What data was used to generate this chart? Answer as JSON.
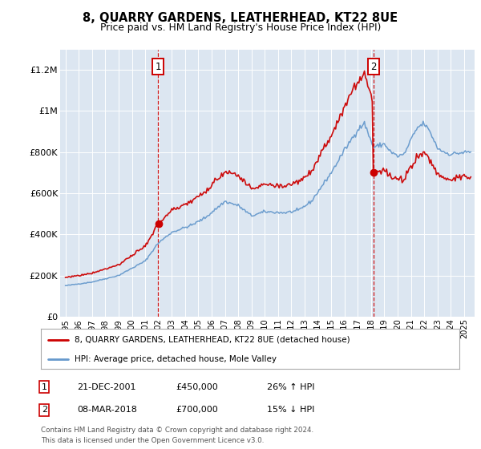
{
  "title": "8, QUARRY GARDENS, LEATHERHEAD, KT22 8UE",
  "subtitle": "Price paid vs. HM Land Registry's House Price Index (HPI)",
  "legend_line1": "8, QUARRY GARDENS, LEATHERHEAD, KT22 8UE (detached house)",
  "legend_line2": "HPI: Average price, detached house, Mole Valley",
  "annotation1_label": "1",
  "annotation1_date": "21-DEC-2001",
  "annotation1_price": "£450,000",
  "annotation1_hpi": "26% ↑ HPI",
  "annotation2_label": "2",
  "annotation2_date": "08-MAR-2018",
  "annotation2_price": "£700,000",
  "annotation2_hpi": "15% ↓ HPI",
  "footer": "Contains HM Land Registry data © Crown copyright and database right 2024.\nThis data is licensed under the Open Government Licence v3.0.",
  "sale1_date_num": 2001.97,
  "sale1_price": 450000,
  "sale2_date_num": 2018.18,
  "sale2_price": 700000,
  "red_color": "#cc0000",
  "blue_color": "#6699cc",
  "plot_bg": "#dce6f1",
  "ylim": [
    0,
    1300000
  ],
  "yticks": [
    0,
    200000,
    400000,
    600000,
    800000,
    1000000,
    1200000
  ],
  "ytick_labels": [
    "£0",
    "£200K",
    "£400K",
    "£600K",
    "£800K",
    "£1M",
    "£1.2M"
  ],
  "xstart": 1994.6,
  "xend": 2025.8
}
